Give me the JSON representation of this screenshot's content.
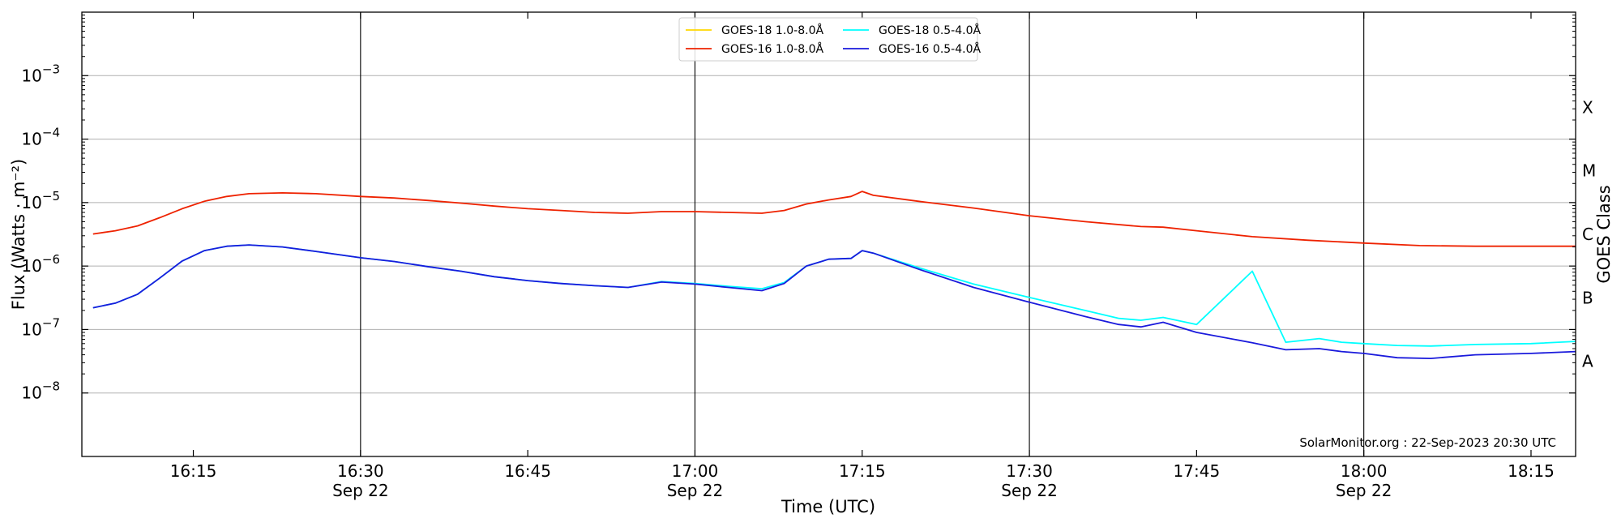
{
  "chart_data": {
    "type": "line",
    "title": "",
    "xlabel": "Time (UTC)",
    "ylabel": "Flux (Watts · m⁻²)",
    "ylabel_right": "GOES Class",
    "y_scale": "log",
    "ylim": [
      1e-09,
      0.01
    ],
    "xlim": [
      "16:05",
      "18:19"
    ],
    "grid": "horizontal",
    "legend_position": "top-center",
    "x_ticks": [
      {
        "t": "16:15",
        "label": "16:15",
        "sublabel": ""
      },
      {
        "t": "16:30",
        "label": "16:30",
        "sublabel": "Sep 22"
      },
      {
        "t": "16:45",
        "label": "16:45",
        "sublabel": ""
      },
      {
        "t": "17:00",
        "label": "17:00",
        "sublabel": "Sep 22"
      },
      {
        "t": "17:15",
        "label": "17:15",
        "sublabel": ""
      },
      {
        "t": "17:30",
        "label": "17:30",
        "sublabel": "Sep 22"
      },
      {
        "t": "17:45",
        "label": "17:45",
        "sublabel": ""
      },
      {
        "t": "18:00",
        "label": "18:00",
        "sublabel": "Sep 22"
      },
      {
        "t": "18:15",
        "label": "18:15",
        "sublabel": ""
      }
    ],
    "vertical_lines": [
      "16:30",
      "17:00",
      "17:30",
      "18:00"
    ],
    "y_ticks": [
      {
        "exp": -3,
        "label": "10",
        "sup": "−3"
      },
      {
        "exp": -4,
        "label": "10",
        "sup": "−4"
      },
      {
        "exp": -5,
        "label": "10",
        "sup": "−5"
      },
      {
        "exp": -6,
        "label": "10",
        "sup": "−6"
      },
      {
        "exp": -7,
        "label": "10",
        "sup": "−7"
      },
      {
        "exp": -8,
        "label": "10",
        "sup": "−8"
      }
    ],
    "class_labels": [
      {
        "label": "X",
        "value": 0.000316
      },
      {
        "label": "M",
        "value": 3.16e-05
      },
      {
        "label": "C",
        "value": 3.16e-06
      },
      {
        "label": "B",
        "value": 3.16e-07
      },
      {
        "label": "A",
        "value": 3.16e-08
      }
    ],
    "annotation": "SolarMonitor.org : 22-Sep-2023 20:30 UTC",
    "series": [
      {
        "name": "GOES-18 1.0-8.0Å",
        "color": "#ffd700",
        "x": [],
        "y": []
      },
      {
        "name": "GOES-16 1.0-8.0Å",
        "color": "#ee2200",
        "x": [
          "16:06",
          "16:08",
          "16:10",
          "16:12",
          "16:14",
          "16:16",
          "16:18",
          "16:20",
          "16:23",
          "16:26",
          "16:30",
          "16:33",
          "16:36",
          "16:39",
          "16:42",
          "16:45",
          "16:48",
          "16:51",
          "16:54",
          "16:57",
          "17:00",
          "17:03",
          "17:06",
          "17:08",
          "17:10",
          "17:12",
          "17:14",
          "17:15",
          "17:16",
          "17:20",
          "17:25",
          "17:30",
          "17:35",
          "17:40",
          "17:42",
          "17:45",
          "17:50",
          "17:55",
          "18:00",
          "18:05",
          "18:10",
          "18:15",
          "18:19"
        ],
        "y": [
          3.2e-06,
          3.6e-06,
          4.3e-06,
          5.8e-06,
          8e-06,
          1.05e-05,
          1.25e-05,
          1.38e-05,
          1.42e-05,
          1.38e-05,
          1.25e-05,
          1.18e-05,
          1.08e-05,
          9.8e-06,
          8.8e-06,
          8e-06,
          7.5e-06,
          7e-06,
          6.8e-06,
          7.2e-06,
          7.2e-06,
          7e-06,
          6.8e-06,
          7.5e-06,
          9.5e-06,
          1.1e-05,
          1.25e-05,
          1.5e-05,
          1.3e-05,
          1.05e-05,
          8.2e-06,
          6.2e-06,
          5e-06,
          4.2e-06,
          4.1e-06,
          3.6e-06,
          2.9e-06,
          2.55e-06,
          2.3e-06,
          2.1e-06,
          2.05e-06,
          2.05e-06,
          2.05e-06
        ]
      },
      {
        "name": "GOES-18 0.5-4.0Å",
        "color": "#00ffff",
        "x": [
          "16:06",
          "16:08",
          "16:10",
          "16:12",
          "16:14",
          "16:16",
          "16:18",
          "16:20",
          "16:23",
          "16:26",
          "16:30",
          "16:33",
          "16:36",
          "16:39",
          "16:42",
          "16:45",
          "16:48",
          "16:51",
          "16:54",
          "16:57",
          "17:00",
          "17:03",
          "17:06",
          "17:08",
          "17:10",
          "17:12",
          "17:14",
          "17:15",
          "17:16",
          "17:20",
          "17:25",
          "17:30",
          "17:35",
          "17:38",
          "17:40",
          "17:42",
          "17:45",
          "17:50",
          "17:53",
          "17:56",
          "17:58",
          "18:00",
          "18:03",
          "18:06",
          "18:10",
          "18:15",
          "18:19"
        ],
        "y": [
          2.2e-07,
          2.6e-07,
          3.6e-07,
          6.5e-07,
          1.2e-06,
          1.75e-06,
          2.05e-06,
          2.15e-06,
          2e-06,
          1.7e-06,
          1.35e-06,
          1.18e-06,
          9.8e-07,
          8.3e-07,
          6.8e-07,
          5.9e-07,
          5.3e-07,
          4.9e-07,
          4.6e-07,
          5.7e-07,
          5.3e-07,
          4.8e-07,
          4.4e-07,
          5.5e-07,
          1e-06,
          1.28e-06,
          1.32e-06,
          1.75e-06,
          1.6e-06,
          9.5e-07,
          5.2e-07,
          3.2e-07,
          2e-07,
          1.5e-07,
          1.4e-07,
          1.55e-07,
          1.2e-07,
          8.3e-07,
          6.3e-08,
          7.2e-08,
          6.3e-08,
          6e-08,
          5.6e-08,
          5.5e-08,
          5.8e-08,
          6e-08,
          6.5e-08
        ]
      },
      {
        "name": "GOES-16 0.5-4.0Å",
        "color": "#1a1adc",
        "x": [
          "16:06",
          "16:08",
          "16:10",
          "16:12",
          "16:14",
          "16:16",
          "16:18",
          "16:20",
          "16:23",
          "16:26",
          "16:30",
          "16:33",
          "16:36",
          "16:39",
          "16:42",
          "16:45",
          "16:48",
          "16:51",
          "16:54",
          "16:57",
          "17:00",
          "17:03",
          "17:06",
          "17:08",
          "17:10",
          "17:12",
          "17:14",
          "17:15",
          "17:16",
          "17:20",
          "17:25",
          "17:30",
          "17:35",
          "17:38",
          "17:40",
          "17:42",
          "17:45",
          "17:50",
          "17:53",
          "17:56",
          "17:58",
          "18:00",
          "18:03",
          "18:06",
          "18:10",
          "18:15",
          "18:19"
        ],
        "y": [
          2.2e-07,
          2.6e-07,
          3.6e-07,
          6.5e-07,
          1.2e-06,
          1.75e-06,
          2.05e-06,
          2.15e-06,
          2e-06,
          1.7e-06,
          1.35e-06,
          1.18e-06,
          9.8e-07,
          8.3e-07,
          6.8e-07,
          5.9e-07,
          5.3e-07,
          4.9e-07,
          4.6e-07,
          5.6e-07,
          5.2e-07,
          4.6e-07,
          4.1e-07,
          5.3e-07,
          1e-06,
          1.28e-06,
          1.32e-06,
          1.75e-06,
          1.6e-06,
          9e-07,
          4.6e-07,
          2.7e-07,
          1.6e-07,
          1.2e-07,
          1.1e-07,
          1.3e-07,
          9e-08,
          6.2e-08,
          4.8e-08,
          5e-08,
          4.5e-08,
          4.2e-08,
          3.6e-08,
          3.5e-08,
          4e-08,
          4.2e-08,
          4.5e-08
        ]
      }
    ]
  }
}
